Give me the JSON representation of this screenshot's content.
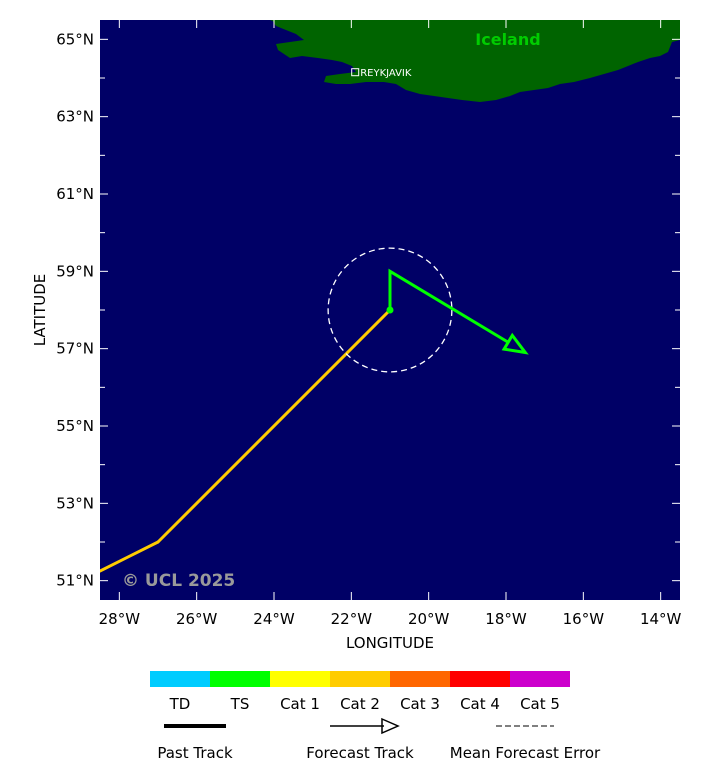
{
  "map": {
    "xlabel": "LONGITUDE",
    "ylabel": "LATITUDE",
    "lon_range": [
      -28.5,
      -13.5
    ],
    "lat_range": [
      50.5,
      65.5
    ],
    "ocean_color": "#000066",
    "land_color": "#006400",
    "lon_ticks": [
      {
        "value": -28,
        "label": "28°W"
      },
      {
        "value": -26,
        "label": "26°W"
      },
      {
        "value": -24,
        "label": "24°W"
      },
      {
        "value": -22,
        "label": "22°W"
      },
      {
        "value": -20,
        "label": "20°W"
      },
      {
        "value": -18,
        "label": "18°W"
      },
      {
        "value": -16,
        "label": "16°W"
      },
      {
        "value": -14,
        "label": "14°W"
      }
    ],
    "lat_ticks": [
      {
        "value": 51,
        "label": "51°N"
      },
      {
        "value": 53,
        "label": "53°N"
      },
      {
        "value": 55,
        "label": "55°N"
      },
      {
        "value": 57,
        "label": "57°N"
      },
      {
        "value": 59,
        "label": "59°N"
      },
      {
        "value": 61,
        "label": "61°N"
      },
      {
        "value": 63,
        "label": "63°N"
      },
      {
        "value": 65,
        "label": "65°N"
      }
    ],
    "land_label": {
      "text": "Iceland",
      "color": "#00cc00"
    },
    "city": {
      "name": "REYKJAVIK",
      "lon": -21.9,
      "lat": 64.15
    },
    "copyright": "© UCL 2025"
  },
  "storm": {
    "past_track": [
      {
        "lon": -28.5,
        "lat": 51.25,
        "category": "Cat 1"
      },
      {
        "lon": -27.0,
        "lat": 52.0,
        "category": "Cat 2"
      },
      {
        "lon": -21.0,
        "lat": 58.0,
        "category": "Cat 2"
      }
    ],
    "current_position": {
      "lon": -21.0,
      "lat": 58.0
    },
    "forecast_track": [
      {
        "lon": -21.0,
        "lat": 58.0
      },
      {
        "lon": -21.0,
        "lat": 59.0
      },
      {
        "lon": -17.5,
        "lat": 56.9
      }
    ],
    "forecast_category": "TS",
    "error_circle": {
      "lon": -21.0,
      "lat": 58.0,
      "radius_deg_lat": 1.6
    }
  },
  "legend": {
    "categories": [
      {
        "label": "TD",
        "color": "#00ccff"
      },
      {
        "label": "TS",
        "color": "#00ff00"
      },
      {
        "label": "Cat 1",
        "color": "#ffff00"
      },
      {
        "label": "Cat 2",
        "color": "#ffcc00"
      },
      {
        "label": "Cat 3",
        "color": "#ff6600"
      },
      {
        "label": "Cat 4",
        "color": "#ff0000"
      },
      {
        "label": "Cat 5",
        "color": "#cc00cc"
      }
    ],
    "past_track_label": "Past Track",
    "forecast_track_label": "Forecast Track",
    "mean_error_label": "Mean Forecast Error"
  }
}
